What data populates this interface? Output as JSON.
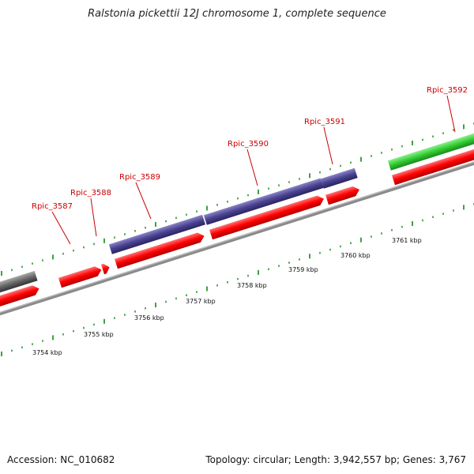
{
  "title": "Ralstonia pickettii 12J chromosome 1, complete sequence",
  "footer": {
    "accession": "Accession: NC_010682",
    "summary": "Topology: circular; Length: 3,942,557 bp; Genes: 3,767"
  },
  "colors": {
    "cds_forward": "#ff0000",
    "cds_reverse": "#4a4290",
    "gene_green": "#33cc33",
    "gene_gray": "#666666",
    "axis": "#888888",
    "tick": "#118811",
    "label": "#cc0000"
  },
  "scale_labels": [
    "3754 kbp",
    "3755 kbp",
    "3756 kbp",
    "3757 kbp",
    "3758 kbp",
    "3759 kbp",
    "3760 kbp",
    "3761 kbp"
  ],
  "gene_labels": [
    "Rpic_3587",
    "Rpic_3588",
    "Rpic_3589",
    "Rpic_3590",
    "Rpic_3591",
    "Rpic_3592"
  ]
}
